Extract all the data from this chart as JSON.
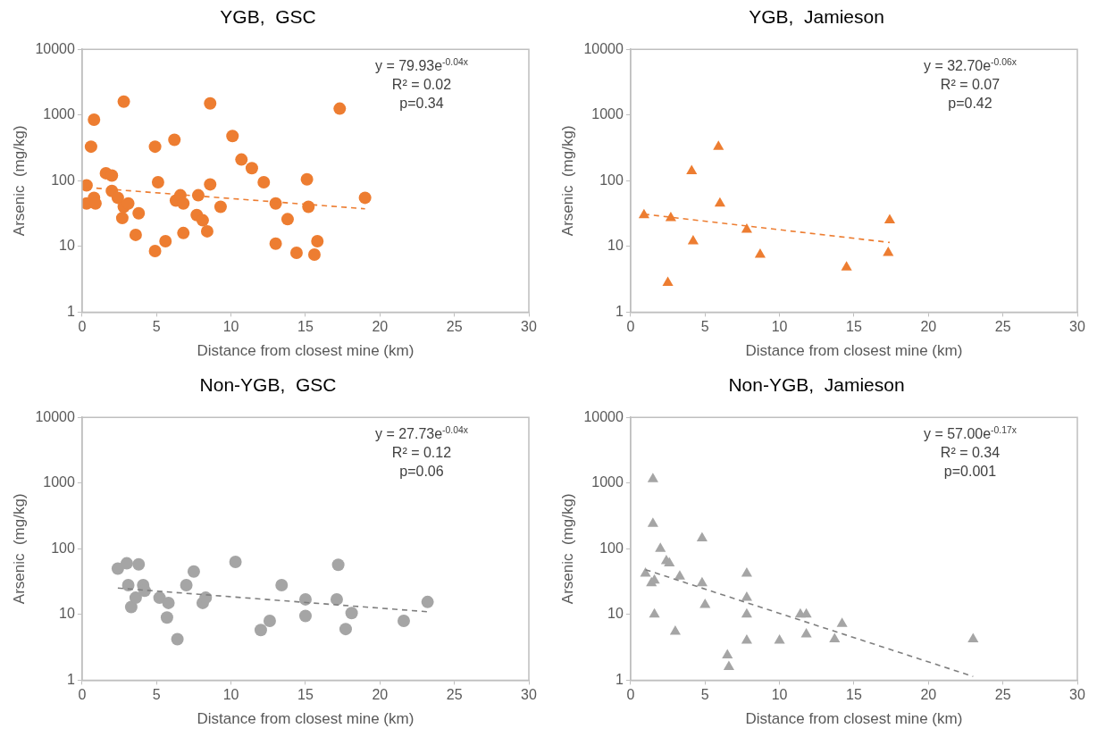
{
  "chart_data": [
    {
      "type": "scatter",
      "title": "YGB,  GSC",
      "xlabel": "Distance from closest mine (km)",
      "ylabel": "Arsenic  (mg/kg)",
      "xlim": [
        0,
        30
      ],
      "xticks": [
        0,
        5,
        10,
        15,
        20,
        25,
        30
      ],
      "ylim": [
        1,
        10000
      ],
      "yticks": [
        1,
        10,
        100,
        1000,
        10000
      ],
      "log": "y",
      "grid": false,
      "legend": false,
      "marker": "circle",
      "series": [
        {
          "color": "#ed7d31",
          "x": [
            0.3,
            0.3,
            0.6,
            0.8,
            0.8,
            0.9,
            1.6,
            2,
            2,
            2.4,
            2.7,
            2.8,
            2.8,
            3.1,
            3.6,
            3.8,
            4.9,
            4.9,
            5.1,
            5.6,
            6.2,
            6.3,
            6.6,
            6.8,
            6.8,
            7.7,
            7.8,
            8.1,
            8.4,
            8.6,
            8.6,
            9.3,
            10.1,
            10.7,
            11.4,
            12.2,
            13,
            13,
            13.8,
            14.4,
            15.1,
            15.2,
            15.6,
            15.8,
            17.3,
            19
          ],
          "values": [
            85,
            45,
            330,
            850,
            55,
            45,
            130,
            120,
            70,
            55,
            27,
            40,
            1600,
            45,
            15,
            32,
            330,
            8.5,
            95,
            12,
            420,
            50,
            60,
            45,
            16,
            30,
            60,
            25,
            17,
            1500,
            88,
            40,
            480,
            210,
            155,
            95,
            45,
            11,
            26,
            8,
            105,
            40,
            7.5,
            12,
            1250,
            55
          ]
        },
        {
          "type": "line",
          "color": "#ed7d31",
          "marker": "none",
          "line_style": "dashed",
          "x": [
            0.3,
            19
          ],
          "values": [
            79.0,
            37.4
          ]
        }
      ],
      "annotations": [
        "y = 79.93e$^{-0.04x}$",
        "R² = 0.02",
        "p=0.34"
      ]
    },
    {
      "type": "scatter",
      "title": "YGB,  Jamieson",
      "xlabel": "Distance from closest mine (km)",
      "ylabel": "Arsenic  (mg/kg)",
      "xlim": [
        0,
        30
      ],
      "xticks": [
        0,
        5,
        10,
        15,
        20,
        25,
        30
      ],
      "ylim": [
        1,
        10000
      ],
      "yticks": [
        1,
        10,
        100,
        1000,
        10000
      ],
      "log": "y",
      "grid": false,
      "legend": false,
      "marker": "triangle",
      "series": [
        {
          "color": "#ed7d31",
          "x": [
            0.9,
            2.5,
            2.7,
            4.1,
            4.2,
            5.9,
            6,
            7.8,
            8.7,
            14.5,
            17.4,
            17.3
          ],
          "values": [
            30,
            2.8,
            27,
            140,
            12,
            330,
            45,
            18,
            7.5,
            4.8,
            25,
            8
          ]
        },
        {
          "type": "line",
          "color": "#ed7d31",
          "marker": "none",
          "line_style": "dashed",
          "x": [
            0.9,
            17.4
          ],
          "values": [
            31.0,
            11.5
          ]
        }
      ],
      "annotations": [
        "y = 32.70e$^{-0.06x}$",
        "R² = 0.07",
        "p=0.42"
      ]
    },
    {
      "type": "scatter",
      "title": "Non-YGB,  GSC",
      "xlabel": "Distance from closest mine (km)",
      "ylabel": "Arsenic  (mg/kg)",
      "xlim": [
        0,
        30
      ],
      "xticks": [
        0,
        5,
        10,
        15,
        20,
        25,
        30
      ],
      "ylim": [
        1,
        10000
      ],
      "yticks": [
        1,
        10,
        100,
        1000,
        10000
      ],
      "log": "y",
      "grid": false,
      "legend": false,
      "marker": "circle",
      "series": [
        {
          "color": "#a5a5a5",
          "x": [
            2.4,
            3,
            3.1,
            3.3,
            3.6,
            3.8,
            4.1,
            4.2,
            5.2,
            5.8,
            5.7,
            6.4,
            7,
            7.5,
            8.1,
            8.3,
            10.3,
            12,
            12.6,
            13.4,
            15,
            15,
            17.1,
            17.2,
            17.7,
            18.1,
            21.6,
            23.2
          ],
          "values": [
            50,
            60,
            28,
            13,
            18,
            58,
            28,
            23,
            18,
            15,
            9,
            4.2,
            28,
            45,
            15,
            18,
            63,
            5.8,
            8,
            28,
            17,
            9.5,
            17,
            57,
            6,
            10.5,
            8,
            15.5
          ]
        },
        {
          "type": "line",
          "color": "#7f7f7f",
          "marker": "none",
          "line_style": "dashed",
          "x": [
            2.4,
            23.2
          ],
          "values": [
            25.2,
            11.0
          ]
        }
      ],
      "annotations": [
        "y = 27.73e$^{-0.04x}$",
        "R² = 0.12",
        "p=0.06"
      ]
    },
    {
      "type": "scatter",
      "title": "Non-YGB,  Jamieson",
      "xlabel": "Distance from closest mine (km)",
      "ylabel": "Arsenic  (mg/kg)",
      "xlim": [
        0,
        30
      ],
      "xticks": [
        0,
        5,
        10,
        15,
        20,
        25,
        30
      ],
      "ylim": [
        1,
        10000
      ],
      "yticks": [
        1,
        10,
        100,
        1000,
        10000
      ],
      "log": "y",
      "grid": false,
      "legend": false,
      "marker": "triangle",
      "series": [
        {
          "color": "#a5a5a5",
          "x": [
            1,
            1.5,
            1.5,
            1.4,
            1.6,
            1.6,
            2,
            2.4,
            2.6,
            3,
            3.3,
            4.8,
            4.8,
            5,
            6.5,
            6.6,
            7.8,
            7.8,
            7.8,
            7.8,
            10,
            11.4,
            11.8,
            11.8,
            13.7,
            14.2,
            23
          ],
          "values": [
            42,
            1150,
            240,
            30,
            33,
            10,
            100,
            65,
            60,
            5.5,
            38,
            145,
            30,
            14,
            2.4,
            1.6,
            42,
            18,
            10,
            4,
            4,
            10,
            10,
            5,
            4.2,
            7.2,
            4.2
          ]
        },
        {
          "type": "line",
          "color": "#7f7f7f",
          "marker": "none",
          "line_style": "dashed",
          "x": [
            1,
            23
          ],
          "values": [
            48.1,
            1.14
          ]
        }
      ],
      "annotations": [
        "y = 57.00e$^{-0.17x}$",
        "R² = 0.34",
        "p=0.001"
      ]
    }
  ]
}
